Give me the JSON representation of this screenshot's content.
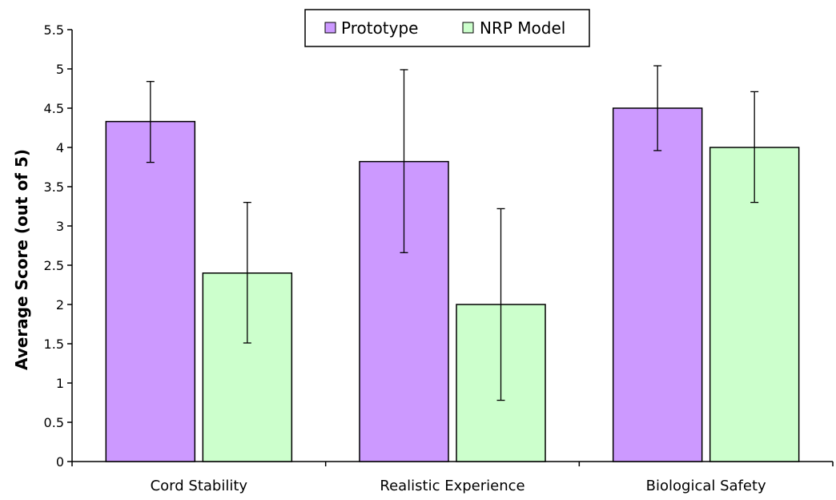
{
  "chart_data": {
    "type": "bar",
    "title": "",
    "xlabel": "",
    "ylabel": "Average Score (out of 5)",
    "ylim": [
      0,
      5.5
    ],
    "ytick_step": 0.5,
    "yticks": [
      "0",
      "0.5",
      "1",
      "1.5",
      "2",
      "2.5",
      "3",
      "3.5",
      "4",
      "4.5",
      "5",
      "5.5"
    ],
    "categories": [
      "Cord Stability",
      "Realistic Experience",
      "Biological Safety"
    ],
    "series": [
      {
        "name": "Prototype",
        "color": "#cc99ff",
        "values": [
          4.33,
          3.82,
          4.5
        ],
        "error_low": [
          3.81,
          2.66,
          3.96
        ],
        "error_high": [
          4.84,
          4.99,
          5.04
        ]
      },
      {
        "name": "NRP Model",
        "color": "#ccffcc",
        "values": [
          2.4,
          2.0,
          4.0
        ],
        "error_low": [
          1.51,
          0.78,
          3.3
        ],
        "error_high": [
          3.3,
          3.22,
          4.71
        ]
      }
    ],
    "grid": false,
    "legend_position": "top-center"
  }
}
